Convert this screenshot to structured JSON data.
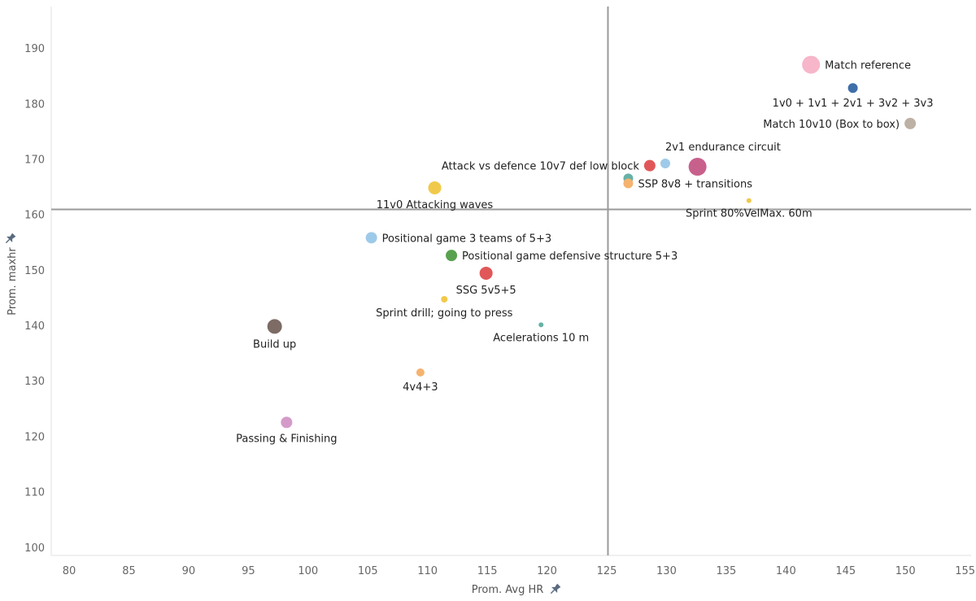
{
  "chart_data": {
    "type": "scatter",
    "title": "",
    "xlabel": "Prom. Avg HR",
    "ylabel": "Prom. maxhr",
    "xlim": [
      78.5,
      155.5
    ],
    "ylim": [
      98.5,
      197.5
    ],
    "x_ticks": [
      80,
      85,
      90,
      95,
      100,
      105,
      110,
      115,
      120,
      125,
      130,
      135,
      140,
      145,
      150,
      155
    ],
    "y_ticks": [
      100,
      110,
      120,
      130,
      140,
      150,
      160,
      170,
      180,
      190
    ],
    "reference_lines": {
      "x": 125.1,
      "y": 160.9
    },
    "grid": false,
    "legend": "none",
    "axis_pin_icon_color": "#5a6b80",
    "points": [
      {
        "label": "Match reference",
        "x": 142.1,
        "y": 187.0,
        "size": 11,
        "color": "#f7b6c9",
        "label_pos": "right"
      },
      {
        "label": "1v0 + 1v1 + 2v1 + 3v2 + 3v3",
        "x": 145.6,
        "y": 182.8,
        "size": 6,
        "color": "#3f6fa8",
        "label_pos": "below"
      },
      {
        "label": "Match 10v10 (Box to box)",
        "x": 150.4,
        "y": 176.4,
        "size": 7,
        "color": "#bdb1a5",
        "label_pos": "left"
      },
      {
        "label": "2v1 endurance circuit",
        "x": 129.9,
        "y": 169.2,
        "size": 6,
        "color": "#9ecae9",
        "label_pos": "above-right"
      },
      {
        "label": "Attack vs defence 10v7 def low block",
        "x": 128.6,
        "y": 168.8,
        "size": 7,
        "color": "#e15759",
        "label_pos": "left"
      },
      {
        "label": "",
        "x": 132.6,
        "y": 168.6,
        "size": 11,
        "color": "#c8608c",
        "label_pos": "none"
      },
      {
        "label": "",
        "x": 126.8,
        "y": 166.5,
        "size": 6,
        "color": "#66b2a6",
        "label_pos": "none"
      },
      {
        "label": "SSP 8v8 + transitions",
        "x": 126.8,
        "y": 165.6,
        "size": 6,
        "color": "#f5b36f",
        "label_pos": "right"
      },
      {
        "label": "11v0 Attacking waves",
        "x": 110.6,
        "y": 164.8,
        "size": 8,
        "color": "#f1c94a",
        "label_pos": "below"
      },
      {
        "label": "Sprint 80%VelMax. 60m",
        "x": 136.9,
        "y": 162.5,
        "size": 3,
        "color": "#f1c94a",
        "label_pos": "below"
      },
      {
        "label": "Positional game 3 teams of 5+3",
        "x": 105.3,
        "y": 155.8,
        "size": 7,
        "color": "#9ecae9",
        "label_pos": "right"
      },
      {
        "label": "Positional game defensive structure 5+3",
        "x": 112.0,
        "y": 152.6,
        "size": 7,
        "color": "#59a14f",
        "label_pos": "right"
      },
      {
        "label": "SSG 5v5+5",
        "x": 114.9,
        "y": 149.4,
        "size": 8,
        "color": "#e15759",
        "label_pos": "below"
      },
      {
        "label": "Sprint drill; going to press",
        "x": 111.4,
        "y": 144.7,
        "size": 4,
        "color": "#f1c94a",
        "label_pos": "below"
      },
      {
        "label": "Acelerations 10 m",
        "x": 119.5,
        "y": 140.1,
        "size": 3,
        "color": "#66b2a6",
        "label_pos": "below"
      },
      {
        "label": "Build up",
        "x": 97.2,
        "y": 139.8,
        "size": 9,
        "color": "#7d6b65",
        "label_pos": "below"
      },
      {
        "label": "4v4+3",
        "x": 109.4,
        "y": 131.5,
        "size": 5,
        "color": "#f5b36f",
        "label_pos": "below"
      },
      {
        "label": "Passing & Finishing",
        "x": 98.2,
        "y": 122.5,
        "size": 7,
        "color": "#d49bc9",
        "label_pos": "below"
      }
    ]
  }
}
